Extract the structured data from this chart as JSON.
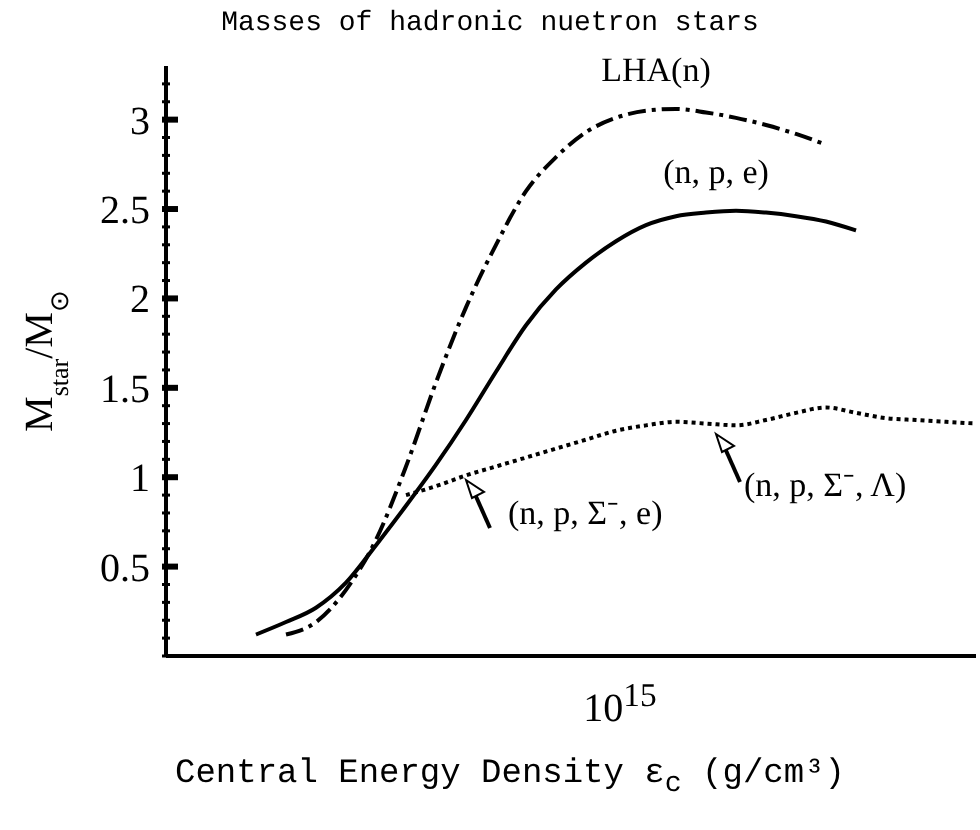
{
  "chart_data": {
    "type": "line",
    "title": "Masses of hadronic nuetron stars",
    "xlabel": "Central Energy Density  ε$_{c}$ (g/cm³)",
    "ylabel": "M$_{star}$/M$_{⊙}$",
    "categories": [
      null,
      null,
      null,
      null,
      null,
      null,
      null,
      null,
      null,
      null,
      null,
      null,
      null,
      null,
      null,
      null,
      null,
      null,
      null,
      null,
      null,
      null,
      null,
      null,
      null,
      null,
      null,
      null
    ],
    "ylim": [
      0,
      3.3
    ],
    "yticks": [
      {
        "value": 0,
        "label": null
      },
      {
        "value": 0.1,
        "label": null
      },
      {
        "value": 0.2,
        "label": null
      },
      {
        "value": 0.3,
        "label": null
      },
      {
        "value": 0.4,
        "label": null
      },
      0.5,
      {
        "value": 0.6,
        "label": null
      },
      {
        "value": 0.7,
        "label": null
      },
      {
        "value": 0.8,
        "label": null
      },
      {
        "value": 0.9,
        "label": null
      },
      1,
      {
        "value": 1.1,
        "label": null
      },
      {
        "value": 1.2,
        "label": null
      },
      {
        "value": 1.3,
        "label": null
      },
      {
        "value": 1.4,
        "label": null
      },
      1.5,
      {
        "value": 1.6,
        "label": null
      },
      {
        "value": 1.7,
        "label": null
      },
      {
        "value": 1.8,
        "label": null
      },
      {
        "value": 1.9,
        "label": null
      },
      2,
      {
        "value": 2.1,
        "label": null
      },
      {
        "value": 2.2,
        "label": null
      },
      {
        "value": 2.3,
        "label": null
      },
      {
        "value": 2.4,
        "label": null
      },
      2.5,
      {
        "value": 2.6,
        "label": null
      },
      {
        "value": 2.7,
        "label": null
      },
      {
        "value": 2.8,
        "label": null
      },
      {
        "value": 2.9,
        "label": null
      },
      3,
      {
        "value": 3.1,
        "label": null
      },
      {
        "value": 3.2,
        "label": null
      }
    ],
    "series": [
      {
        "name": "LHA(n)",
        "color": "#000000",
        "line_style": "dashdot",
        "values": [
          null,
          null,
          null,
          null,
          0.12,
          0.19,
          0.37,
          0.65,
          1.06,
          1.53,
          1.95,
          2.3,
          2.6,
          2.79,
          2.93,
          3.01,
          3.05,
          3.06,
          3.04,
          3.01,
          2.97,
          2.92,
          2.86,
          null,
          null,
          null,
          null,
          null
        ]
      },
      {
        "name": "(n, p, e)",
        "color": "#000000",
        "line_style": "solid",
        "values": [
          null,
          null,
          null,
          0.12,
          0.19,
          0.27,
          0.41,
          0.62,
          0.84,
          1.07,
          1.32,
          1.59,
          1.85,
          2.05,
          2.2,
          2.32,
          2.41,
          2.46,
          2.48,
          2.49,
          2.48,
          2.46,
          2.43,
          2.38,
          null,
          null,
          null,
          null
        ]
      },
      {
        "color": "#000000",
        "line_style": "dotted",
        "values": [
          null,
          null,
          null,
          null,
          null,
          null,
          null,
          null,
          0.9,
          0.95,
          1.01,
          1.06,
          1.11,
          1.16,
          1.21,
          1.26,
          1.29,
          1.31,
          1.3,
          1.29,
          1.32,
          1.36,
          1.39,
          1.36,
          1.33,
          1.32,
          1.31,
          1.3
        ]
      }
    ],
    "annotations": [
      "(n, p, Σ⁻, e)",
      "(n, p, Σ⁻, Λ)",
      "10$^{15}$"
    ]
  }
}
